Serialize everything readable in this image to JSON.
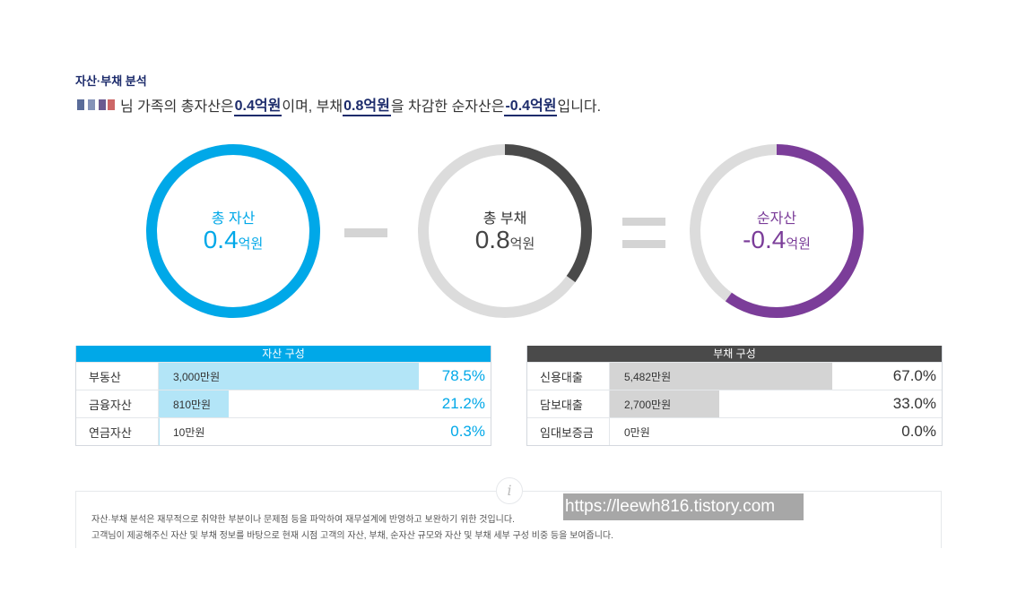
{
  "section_title": "자산·부채 분석",
  "summary": {
    "suffix_after_name": "님 가족의 총자산은 ",
    "total_assets": "0.4억원",
    "text2": "이며, 부채 ",
    "total_debt": "0.8억원",
    "text3": "을 차감한 순자산은 ",
    "net_assets": "-0.4억원",
    "text4": "입니다."
  },
  "rings": {
    "assets": {
      "label": "총 자산",
      "value": "0.4",
      "unit": "억원",
      "fill_fraction": 1.0,
      "color": "#00a8e8"
    },
    "debt": {
      "label": "총 부채",
      "value": "0.8",
      "unit": "억원",
      "fill_fraction": 0.35,
      "color": "#4a4a4a"
    },
    "net": {
      "label": "순자산",
      "value": "-0.4",
      "unit": "억원",
      "fill_fraction": 0.6,
      "color": "#7b3d99"
    }
  },
  "asset_table": {
    "header": "자산 구성",
    "header_color": "#00a8e8",
    "bar_color": "#b3e5f7",
    "rows": [
      {
        "name": "부동산",
        "amount": "3,000만원",
        "percent": "78.5%",
        "fraction": 0.785
      },
      {
        "name": "금융자산",
        "amount": "810만원",
        "percent": "21.2%",
        "fraction": 0.212
      },
      {
        "name": "연금자산",
        "amount": "10만원",
        "percent": "0.3%",
        "fraction": 0.003
      }
    ]
  },
  "debt_table": {
    "header": "부채 구성",
    "header_color": "#4a4a4a",
    "bar_color": "#d4d4d4",
    "rows": [
      {
        "name": "신용대출",
        "amount": "5,482만원",
        "percent": "67.0%",
        "fraction": 0.67
      },
      {
        "name": "담보대출",
        "amount": "2,700만원",
        "percent": "33.0%",
        "fraction": 0.33
      },
      {
        "name": "임대보증금",
        "amount": "0만원",
        "percent": "0.0%",
        "fraction": 0.0
      }
    ]
  },
  "info": {
    "icon": "info-icon",
    "line1": "자산·부채 분석은 재무적으로 취약한 부분이나 문제점 등을 파악하여 재무설계에 반영하고 보완하기 위한 것입니다.",
    "line2": "고객님이 제공해주신 자산 및 부채 정보를 바탕으로 현재 시점 고객의 자산, 부채, 순자산 규모와 자산 및 부채 세부 구성 비중 등을 보여줍니다."
  },
  "watermark": "https://leewh816.tistory.com"
}
